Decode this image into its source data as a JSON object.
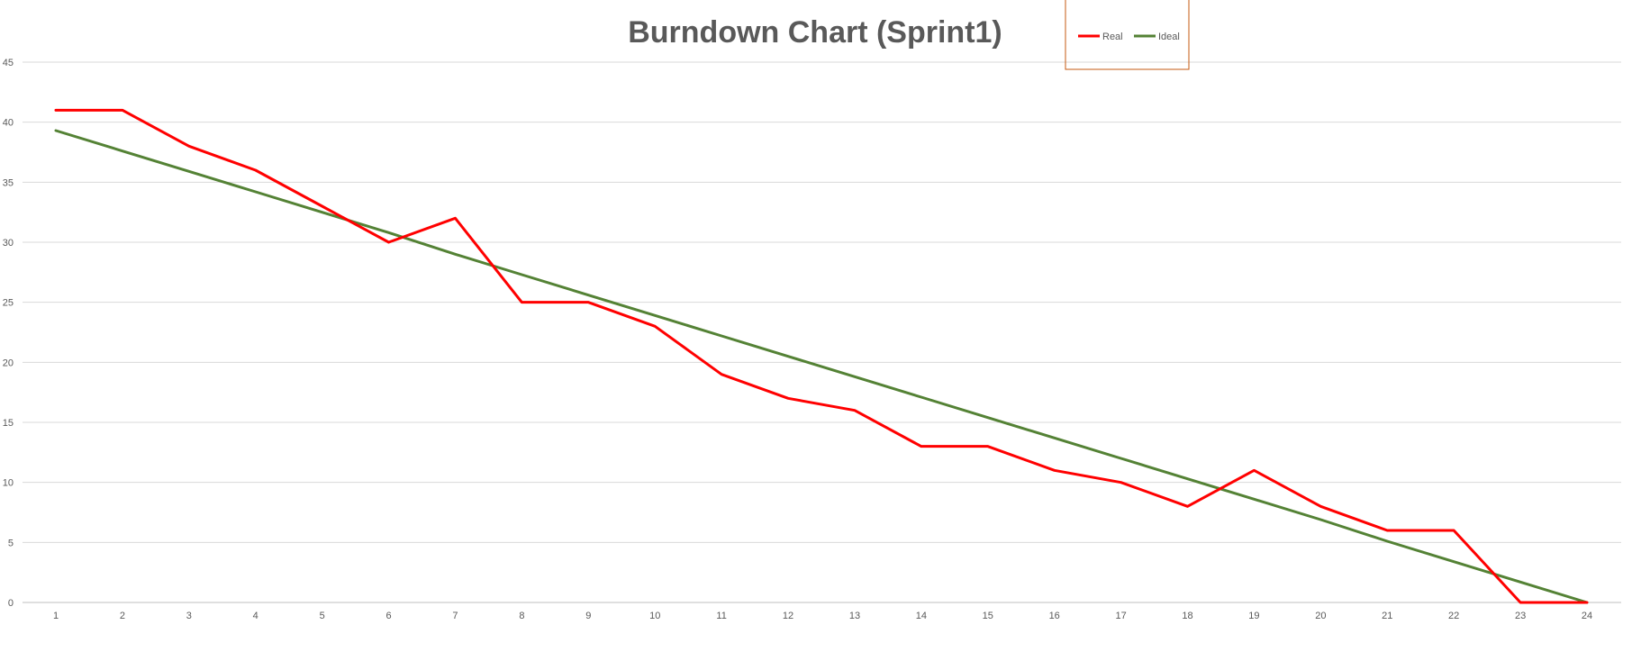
{
  "chart_data": {
    "type": "line",
    "title": "Burndown Chart (Sprint1)",
    "xlabel": "",
    "ylabel": "",
    "x": [
      1,
      2,
      3,
      4,
      5,
      6,
      7,
      8,
      9,
      10,
      11,
      12,
      13,
      14,
      15,
      16,
      17,
      18,
      19,
      20,
      21,
      22,
      23,
      24
    ],
    "ylim": [
      0,
      45
    ],
    "yticks": [
      0,
      5,
      10,
      15,
      20,
      25,
      30,
      35,
      40,
      45
    ],
    "grid": true,
    "legend_position": "top",
    "series": [
      {
        "name": "Real",
        "color": "#ff0000",
        "values": [
          41,
          41,
          38,
          36,
          33,
          30,
          32,
          25,
          25,
          23,
          19,
          17,
          16,
          13,
          13,
          11,
          10,
          8,
          11,
          8,
          6,
          6,
          0,
          0
        ]
      },
      {
        "name": "Ideal",
        "color": "#548235",
        "values": [
          39.3,
          37.6,
          35.9,
          34.2,
          32.5,
          30.8,
          29.0,
          27.3,
          25.6,
          23.9,
          22.2,
          20.5,
          18.8,
          17.1,
          15.4,
          13.7,
          12.0,
          10.3,
          8.6,
          6.9,
          5.1,
          3.4,
          1.7,
          0
        ]
      }
    ]
  },
  "colors": {
    "gridline": "#d9d9d9",
    "axis": "#bfbfbf",
    "legend_border": "#c55a11",
    "title": "#595959"
  }
}
